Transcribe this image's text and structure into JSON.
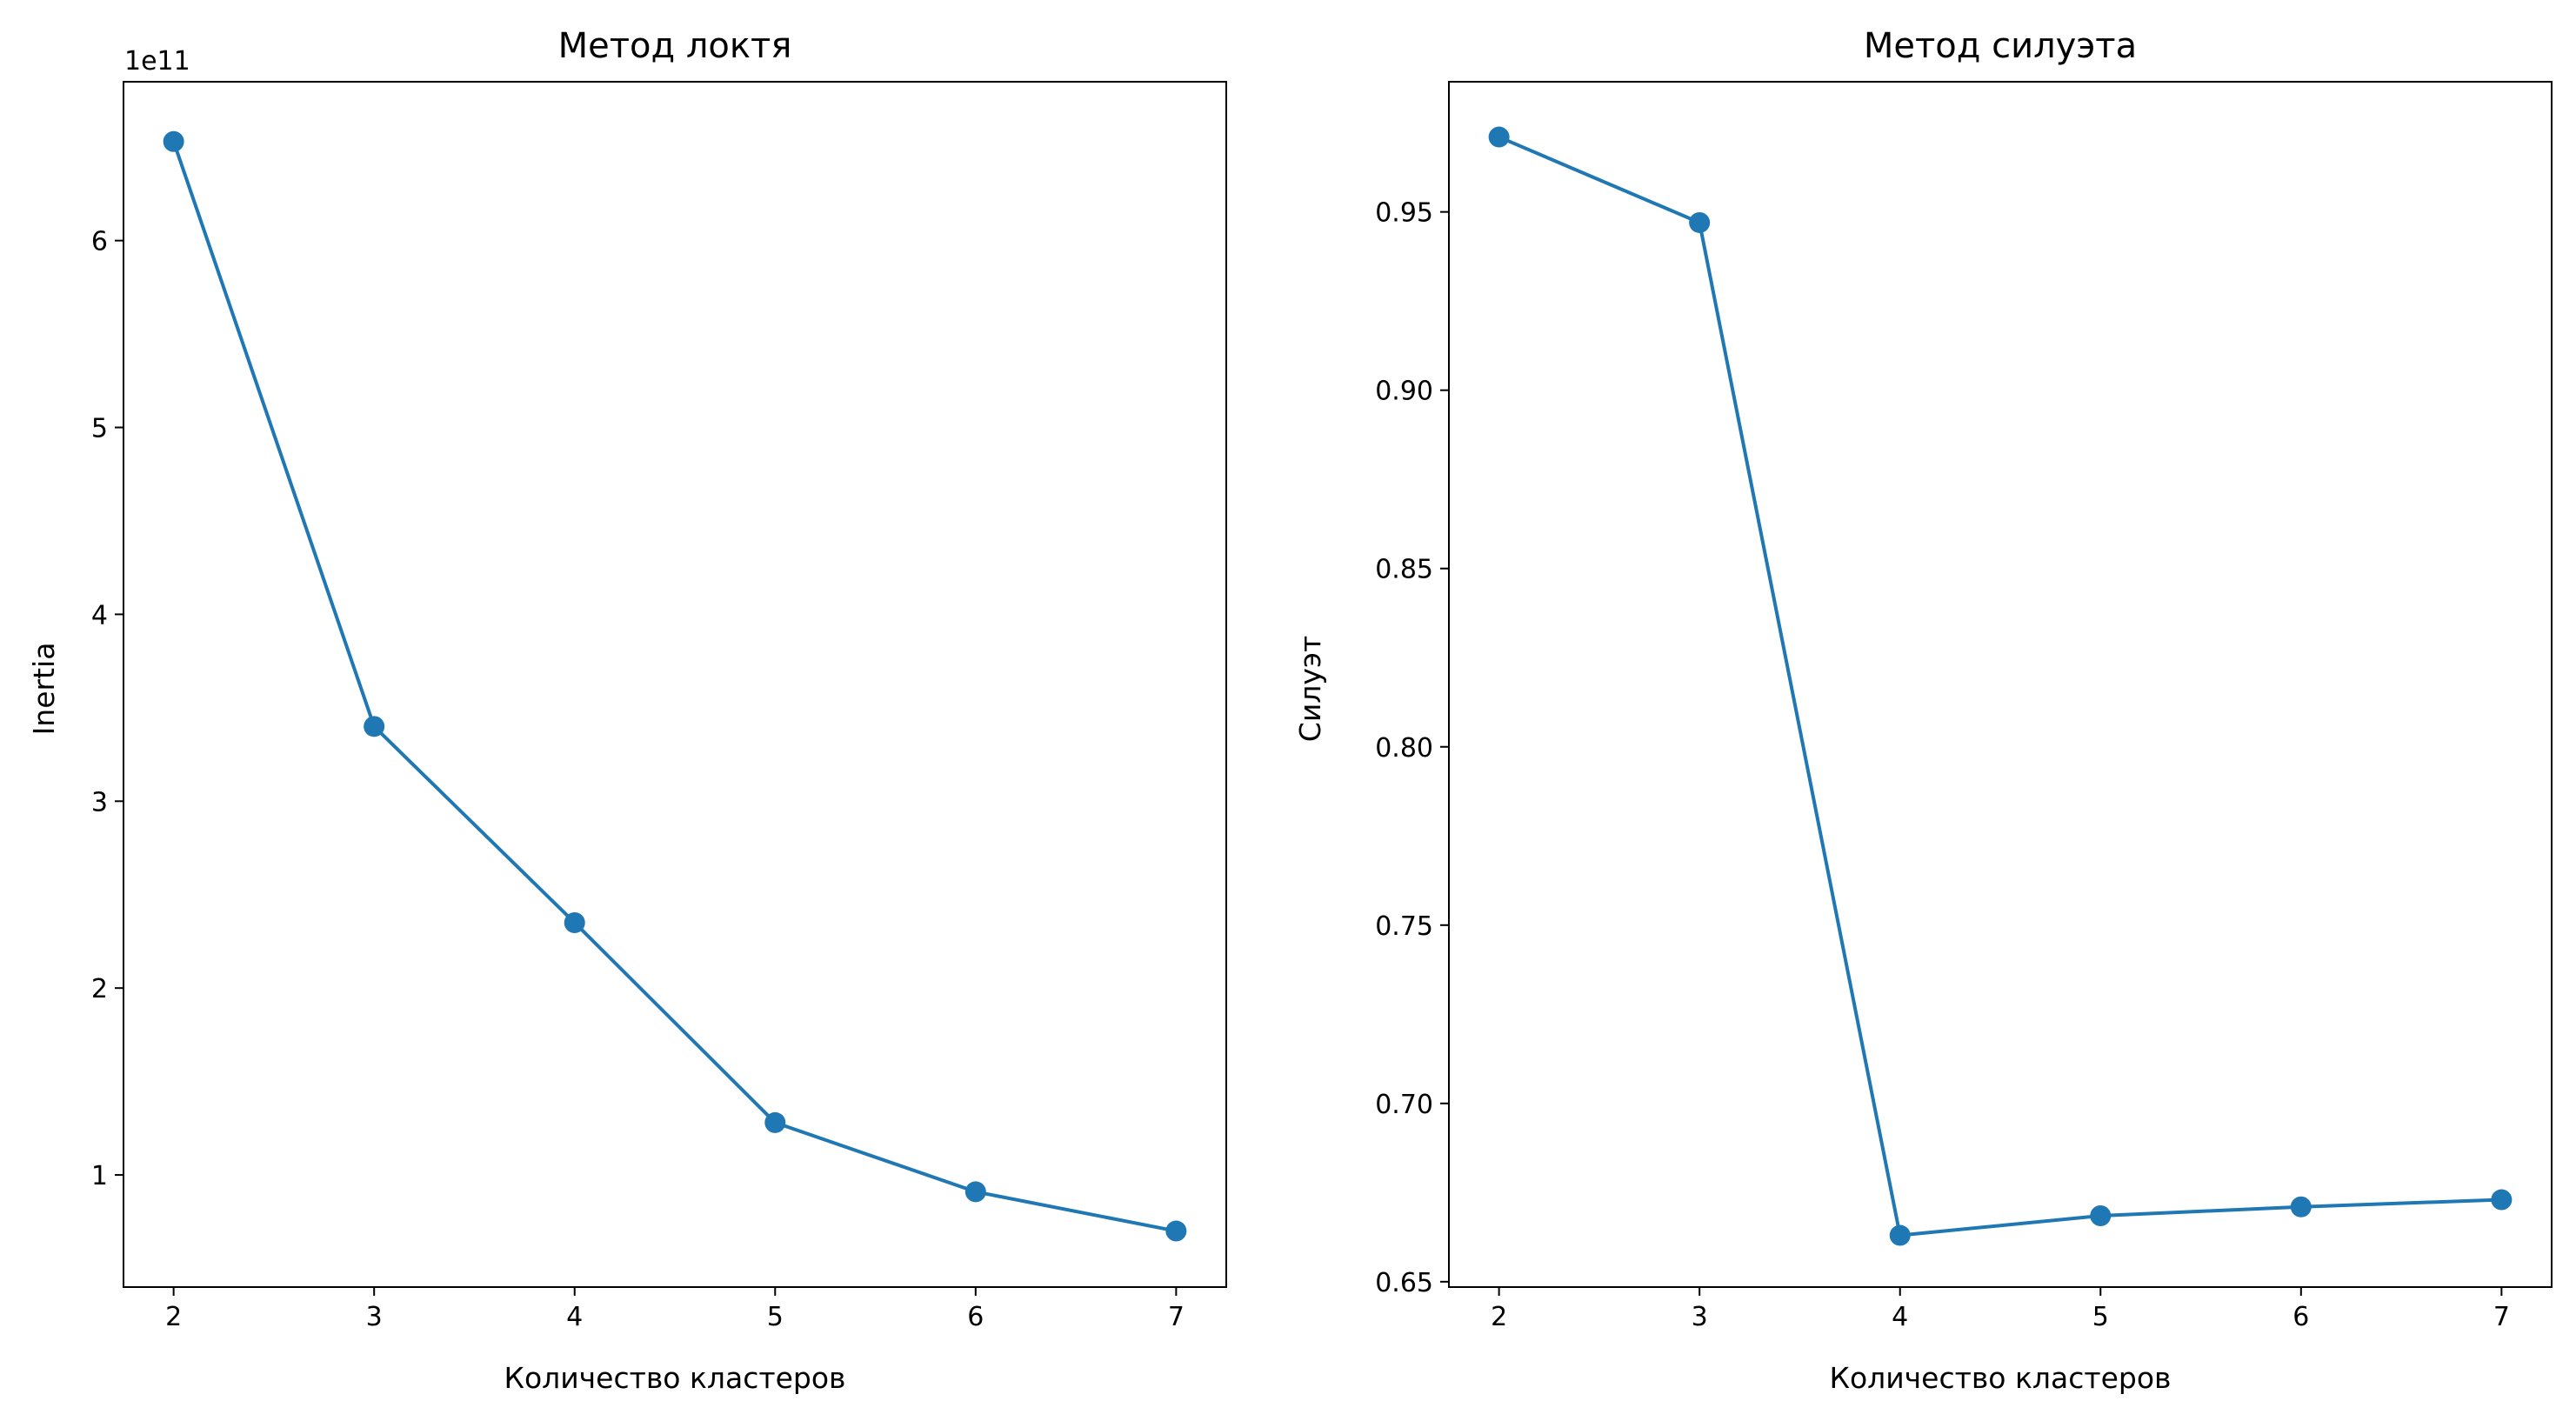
{
  "chart_data": [
    {
      "type": "line",
      "title": "Метод локтя",
      "xlabel": "Количество кластеров",
      "ylabel": "Inertia",
      "y_offset_label": "1e11",
      "x": [
        2,
        3,
        4,
        5,
        6,
        7
      ],
      "x_ticks": [
        "2",
        "3",
        "4",
        "5",
        "6",
        "7"
      ],
      "xlim": [
        1.75,
        7.25
      ],
      "ylim": [
        0.4,
        6.85
      ],
      "y_ticks": [
        1,
        2,
        3,
        4,
        5,
        6
      ],
      "y_tick_labels": [
        "1",
        "2",
        "3",
        "4",
        "5",
        "6"
      ],
      "series": [
        {
          "values": [
            6.53,
            3.4,
            2.35,
            1.28,
            0.91,
            0.7
          ],
          "color": "#1f77b4",
          "marker": "circle"
        }
      ],
      "grid": false
    },
    {
      "type": "line",
      "title": "Метод силуэта",
      "xlabel": "Количество кластеров",
      "ylabel": "Силуэт",
      "x": [
        2,
        3,
        4,
        5,
        6,
        7
      ],
      "x_ticks": [
        "2",
        "3",
        "4",
        "5",
        "6",
        "7"
      ],
      "xlim": [
        1.75,
        7.25
      ],
      "ylim": [
        0.6485,
        0.9865
      ],
      "y_ticks": [
        0.65,
        0.7,
        0.75,
        0.8,
        0.85,
        0.9,
        0.95
      ],
      "y_tick_labels": [
        "0.65",
        "0.70",
        "0.75",
        "0.80",
        "0.85",
        "0.90",
        "0.95"
      ],
      "series": [
        {
          "values": [
            0.971,
            0.947,
            0.663,
            0.6685,
            0.671,
            0.673
          ],
          "color": "#1f77b4",
          "marker": "circle"
        }
      ],
      "grid": false
    }
  ]
}
